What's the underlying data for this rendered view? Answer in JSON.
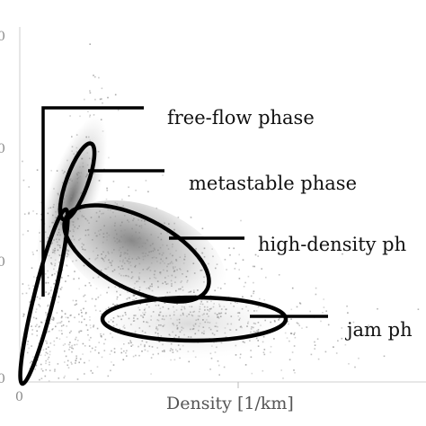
{
  "chart_data": {
    "type": "scatter",
    "xlabel": "Density [1/km]",
    "ylabel": "",
    "x_ticks": [
      "0"
    ],
    "y_ticks": [
      "0",
      "0",
      "0",
      "0"
    ],
    "grid": false,
    "legend": "none",
    "annotations": [
      {
        "id": "free-flow",
        "text": "free-flow phase"
      },
      {
        "id": "metastable",
        "text": "metastable phase"
      },
      {
        "id": "high-density",
        "text": "high-density ph"
      },
      {
        "id": "jam",
        "text": "jam ph"
      }
    ],
    "point_color": "#8a8a8a",
    "ellipse_color": "#000000"
  }
}
